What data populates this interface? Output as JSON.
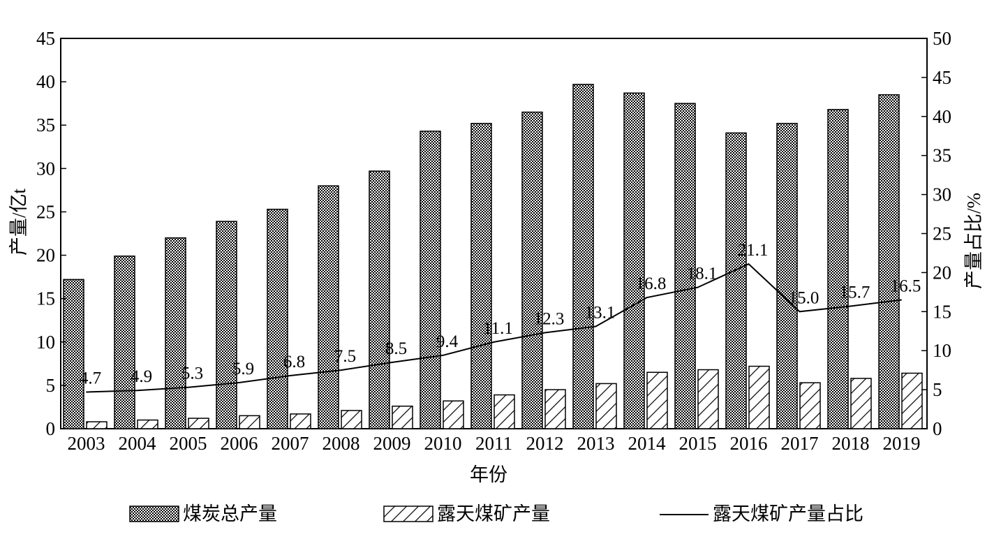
{
  "chart_data": {
    "type": "bar",
    "title": "",
    "xlabel": "年份",
    "ylabel": "产量/亿t",
    "y2label": "产量占比/%",
    "categories": [
      "2003",
      "2004",
      "2005",
      "2006",
      "2007",
      "2008",
      "2009",
      "2010",
      "2011",
      "2012",
      "2013",
      "2014",
      "2015",
      "2016",
      "2017",
      "2018",
      "2019"
    ],
    "ylim": [
      0,
      45
    ],
    "y2lim": [
      0,
      50
    ],
    "yticks": [
      0,
      5,
      10,
      15,
      20,
      25,
      30,
      35,
      40,
      45
    ],
    "y2ticks": [
      0,
      5,
      10,
      15,
      20,
      25,
      30,
      35,
      40,
      45,
      50
    ],
    "grid": false,
    "legend_position": "bottom",
    "series": [
      {
        "name": "煤炭总产量",
        "type": "bar",
        "axis": "left",
        "pattern": "dots",
        "values": [
          17.2,
          19.9,
          22.0,
          23.9,
          25.3,
          28.0,
          29.7,
          34.3,
          35.2,
          36.5,
          39.7,
          38.7,
          37.5,
          34.1,
          35.2,
          36.8,
          38.5
        ]
      },
      {
        "name": "露天煤矿产量",
        "type": "bar",
        "axis": "left",
        "pattern": "hatch",
        "values": [
          0.8,
          1.0,
          1.2,
          1.5,
          1.7,
          2.1,
          2.6,
          3.2,
          3.9,
          4.5,
          5.2,
          6.5,
          6.8,
          7.2,
          5.3,
          5.8,
          6.4
        ]
      },
      {
        "name": "露天煤矿产量占比",
        "type": "line",
        "axis": "right",
        "values": [
          4.7,
          4.9,
          5.3,
          5.9,
          6.8,
          7.5,
          8.5,
          9.4,
          11.1,
          12.3,
          13.1,
          16.8,
          18.1,
          21.1,
          15.0,
          15.7,
          16.5
        ],
        "labels": [
          "4.7",
          "4.9",
          "5.3",
          "5.9",
          "6.8",
          "7.5",
          "8.5",
          "9.4",
          "11.1",
          "12.3",
          "13.1",
          "16.8",
          "18.1",
          "21.1",
          "15.0",
          "15.7",
          "16.5"
        ]
      }
    ]
  }
}
